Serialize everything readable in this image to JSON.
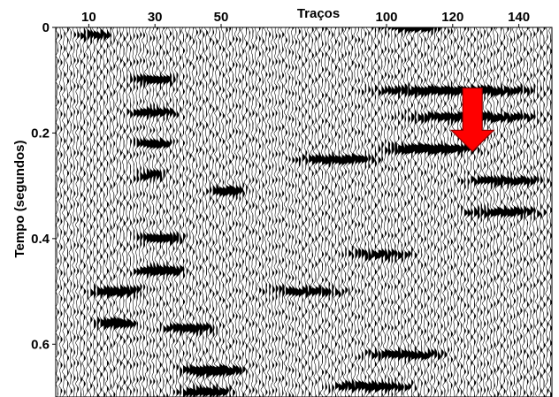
{
  "chart_data": {
    "type": "line",
    "title": "",
    "xlabel": "Traços",
    "ylabel": "Tempo (segundos)",
    "x_axis_position": "top",
    "x_range": [
      0,
      150
    ],
    "y_range": [
      0,
      0.7
    ],
    "y_inverted": true,
    "x_ticks": [
      10,
      30,
      50,
      100,
      120,
      140
    ],
    "x_tick_labels": [
      "10",
      "30",
      "50",
      "100",
      "120",
      "140"
    ],
    "y_ticks": [
      0,
      0.2,
      0.4,
      0.6
    ],
    "y_tick_labels": [
      "0",
      "0.2",
      "0.4",
      "0.6"
    ],
    "trace_count": 150,
    "display": "wiggle-variable-area",
    "trace_color": "#000000",
    "grid": false,
    "events": [
      {
        "trace_start": 5,
        "trace_end": 18,
        "time": 0.015,
        "amplitude": 0.8
      },
      {
        "trace_start": 20,
        "trace_end": 38,
        "time": 0.1,
        "amplitude": 1.0
      },
      {
        "trace_start": 20,
        "trace_end": 38,
        "time": 0.16,
        "amplitude": 1.0
      },
      {
        "trace_start": 22,
        "trace_end": 36,
        "time": 0.22,
        "amplitude": 1.0
      },
      {
        "trace_start": 22,
        "trace_end": 34,
        "time": 0.28,
        "amplitude": 0.9
      },
      {
        "trace_start": 45,
        "trace_end": 58,
        "time": 0.31,
        "amplitude": 1.2
      },
      {
        "trace_start": 22,
        "trace_end": 40,
        "time": 0.4,
        "amplitude": 1.1
      },
      {
        "trace_start": 22,
        "trace_end": 40,
        "time": 0.46,
        "amplitude": 1.3
      },
      {
        "trace_start": 8,
        "trace_end": 28,
        "time": 0.5,
        "amplitude": 1.1
      },
      {
        "trace_start": 10,
        "trace_end": 25,
        "time": 0.56,
        "amplitude": 1.2
      },
      {
        "trace_start": 30,
        "trace_end": 50,
        "time": 0.57,
        "amplitude": 1.0
      },
      {
        "trace_start": 35,
        "trace_end": 58,
        "time": 0.65,
        "amplitude": 1.3
      },
      {
        "trace_start": 35,
        "trace_end": 55,
        "time": 0.69,
        "amplitude": 1.1
      },
      {
        "trace_start": 95,
        "trace_end": 120,
        "time": 0.0,
        "amplitude": 1.0
      },
      {
        "trace_start": 90,
        "trace_end": 150,
        "time": 0.12,
        "amplitude": 1.1
      },
      {
        "trace_start": 100,
        "trace_end": 150,
        "time": 0.17,
        "amplitude": 1.0
      },
      {
        "trace_start": 95,
        "trace_end": 130,
        "time": 0.23,
        "amplitude": 1.3
      },
      {
        "trace_start": 70,
        "trace_end": 100,
        "time": 0.25,
        "amplitude": 1.0
      },
      {
        "trace_start": 120,
        "trace_end": 150,
        "time": 0.29,
        "amplitude": 0.9
      },
      {
        "trace_start": 120,
        "trace_end": 150,
        "time": 0.35,
        "amplitude": 0.9
      },
      {
        "trace_start": 85,
        "trace_end": 110,
        "time": 0.43,
        "amplitude": 0.8
      },
      {
        "trace_start": 60,
        "trace_end": 90,
        "time": 0.5,
        "amplitude": 0.8
      },
      {
        "trace_start": 90,
        "trace_end": 120,
        "time": 0.62,
        "amplitude": 0.9
      },
      {
        "trace_start": 80,
        "trace_end": 110,
        "time": 0.68,
        "amplitude": 1.0
      }
    ],
    "annotations": [
      {
        "type": "arrow",
        "direction": "down",
        "color": "#ff0000",
        "trace": 126,
        "time_start": 0.115,
        "time_end": 0.235
      }
    ]
  }
}
